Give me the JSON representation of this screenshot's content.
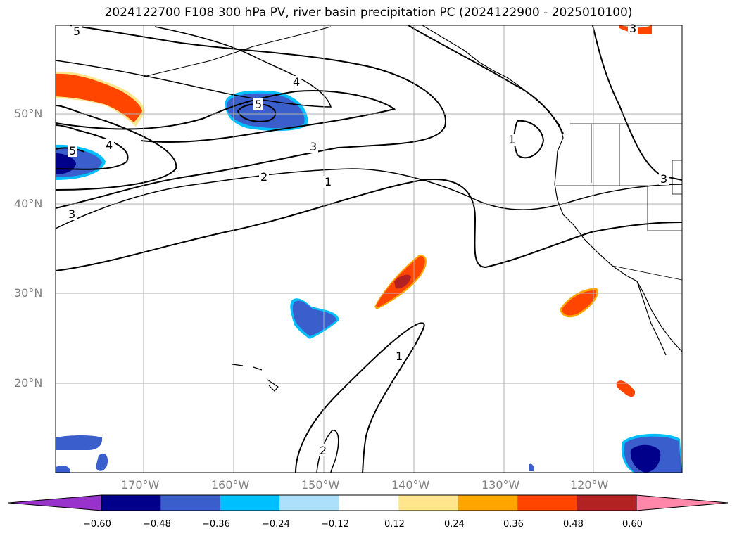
{
  "title": "2024122700 F108 300 hPa PV, river basin precipitation PC (2024122900 - 2025010100)",
  "lat_labels": [
    "50°N",
    "40°N",
    "30°N",
    "20°N"
  ],
  "lon_labels": [
    "170°W",
    "160°W",
    "150°W",
    "140°W",
    "130°W",
    "120°W"
  ],
  "contour_labels": [
    "5",
    "5",
    "4",
    "5",
    "4",
    "3",
    "2",
    "1",
    "1",
    "3",
    "3",
    "1",
    "2",
    "3"
  ],
  "colorbar": {
    "ticks": [
      "−0.60",
      "−0.48",
      "−0.36",
      "−0.24",
      "−0.12",
      "0.12",
      "0.24",
      "0.36",
      "0.48",
      "0.60"
    ],
    "colors": [
      "#9932CC",
      "#00008B",
      "#3A5FCD",
      "#00BFFF",
      "#ADE0FA",
      "#FFFFFF",
      "#FFE68C",
      "#FFA500",
      "#FF4500",
      "#B22222",
      "#FF88AA"
    ]
  },
  "colors": {
    "neg_strong": "#00008B",
    "neg_mid": "#3A5FCD",
    "neg_light": "#00BFFF",
    "pos_light": "#FFE68C",
    "pos_mid": "#FFA500",
    "pos_strong": "#FF4500",
    "pos_max": "#B22222"
  }
}
